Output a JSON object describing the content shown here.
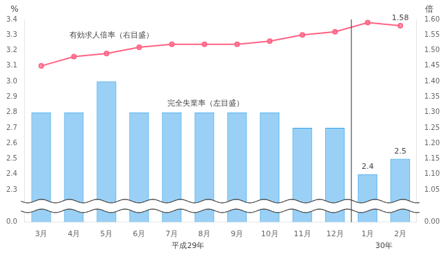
{
  "chart_data": {
    "type": "bar",
    "categories": [
      "3月",
      "4月",
      "5月",
      "6月",
      "7月",
      "8月",
      "9月",
      "10月",
      "11月",
      "12月",
      "1月",
      "2月"
    ],
    "series": [
      {
        "name": "完全失業率（左目盛）",
        "type": "bar",
        "values": [
          2.8,
          2.8,
          3.0,
          2.8,
          2.8,
          2.8,
          2.8,
          2.8,
          2.7,
          2.7,
          2.4,
          2.5
        ],
        "value_labels": [
          null,
          null,
          null,
          null,
          null,
          null,
          null,
          null,
          null,
          null,
          "2.4",
          "2.5"
        ]
      },
      {
        "name": "有効求人倍率（右目盛）",
        "type": "line",
        "axis": "y2",
        "values": [
          1.45,
          1.48,
          1.49,
          1.51,
          1.52,
          1.52,
          1.52,
          1.53,
          1.55,
          1.56,
          1.59,
          1.58
        ],
        "value_labels": [
          null,
          null,
          null,
          null,
          null,
          null,
          null,
          null,
          null,
          null,
          null,
          "1.58"
        ]
      }
    ],
    "ylabel": "%",
    "y2label": "倍",
    "ylim": [
      0,
      3.4
    ],
    "yticks": [
      {
        "value": 0,
        "label": "0.0"
      },
      2.3,
      2.4,
      2.5,
      2.6,
      2.7,
      2.8,
      2.9,
      {
        "value": 3,
        "label": "3.0"
      },
      3.1,
      3.2,
      3.3,
      3.4
    ],
    "y2lim": [
      0,
      1.6
    ],
    "y2ticks": [
      {
        "value": 0,
        "label": "0.00"
      },
      1.05,
      {
        "value": 1.1,
        "label": "1.10"
      },
      1.15,
      {
        "value": 1.2,
        "label": "1.20"
      },
      1.25,
      {
        "value": 1.3,
        "label": "1.30"
      },
      1.35,
      {
        "value": 1.4,
        "label": "1.40"
      },
      1.45,
      {
        "value": 1.5,
        "label": "1.50"
      },
      1.55,
      {
        "value": 1.6,
        "label": "1.60"
      }
    ],
    "x_groups": [
      {
        "label": "平成29年",
        "from": "3月",
        "to": "12月"
      },
      {
        "label": "30年",
        "from": "1月",
        "to": "2月"
      }
    ],
    "grid": false
  }
}
